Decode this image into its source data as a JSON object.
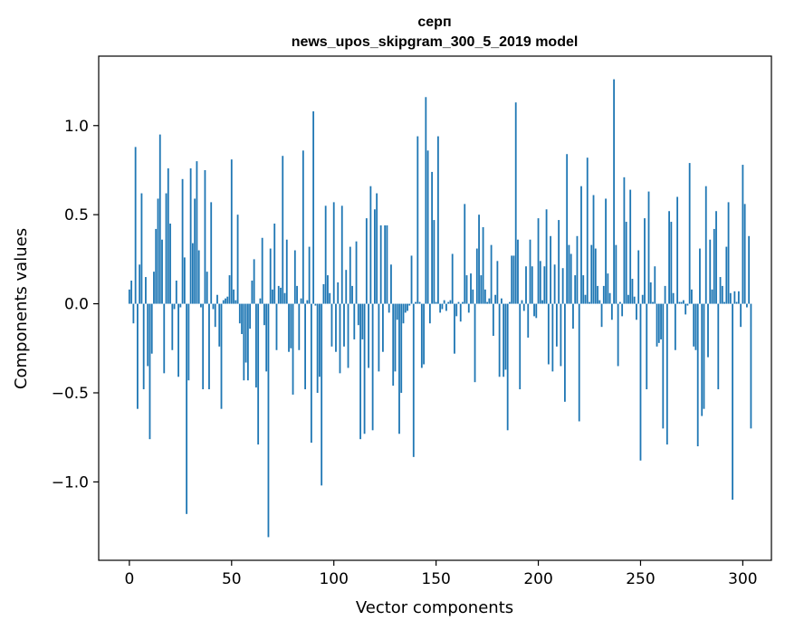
{
  "chart_data": {
    "type": "bar",
    "title": [
      "серп",
      "news_upos_skipgram_300_5_2019 model"
    ],
    "xlabel": "Vector components",
    "ylabel": "Components values",
    "xlim": [
      -15,
      314
    ],
    "ylim": [
      -1.44,
      1.39
    ],
    "xticks": [
      0,
      50,
      100,
      150,
      200,
      250,
      300
    ],
    "xtick_labels": [
      "0",
      "50",
      "100",
      "150",
      "200",
      "250",
      "300"
    ],
    "yticks": [
      -1.0,
      -0.5,
      0.0,
      0.5,
      1.0
    ],
    "ytick_labels": [
      "−1.0",
      "−0.5",
      "0.0",
      "0.5",
      "1.0"
    ],
    "grid": false,
    "bar_color": "#1f77b4",
    "x_start": 0,
    "values": [
      0.08,
      0.13,
      -0.11,
      0.88,
      -0.59,
      0.22,
      0.62,
      -0.48,
      0.15,
      -0.35,
      -0.76,
      -0.28,
      0.18,
      0.42,
      0.59,
      0.95,
      0.36,
      -0.39,
      0.62,
      0.76,
      0.45,
      -0.26,
      -0.03,
      0.13,
      -0.41,
      -0.02,
      0.7,
      0.26,
      -1.18,
      -0.43,
      0.76,
      0.34,
      0.59,
      0.8,
      0.3,
      -0.02,
      -0.48,
      0.75,
      0.18,
      -0.48,
      0.57,
      -0.03,
      -0.13,
      0.05,
      -0.24,
      -0.59,
      0.02,
      0.03,
      0.04,
      0.16,
      0.81,
      0.08,
      0.02,
      0.5,
      -0.11,
      -0.17,
      -0.43,
      -0.33,
      -0.43,
      -0.14,
      0.13,
      0.25,
      -0.47,
      -0.79,
      0.03,
      0.37,
      -0.12,
      -0.38,
      -1.31,
      0.31,
      0.08,
      0.45,
      -0.26,
      0.1,
      0.09,
      0.83,
      0.06,
      0.36,
      -0.27,
      -0.25,
      -0.51,
      0.3,
      0.1,
      -0.26,
      0.03,
      0.86,
      -0.48,
      0.02,
      0.32,
      -0.78,
      1.08,
      -0.01,
      -0.5,
      -0.41,
      -1.02,
      0.11,
      0.55,
      0.16,
      0.06,
      -0.24,
      0.57,
      -0.27,
      0.12,
      -0.39,
      0.55,
      -0.24,
      0.19,
      -0.36,
      0.32,
      0.1,
      -0.2,
      0.35,
      -0.12,
      -0.76,
      -0.2,
      -0.73,
      0.48,
      -0.36,
      0.66,
      -0.71,
      0.53,
      0.62,
      -0.38,
      0.44,
      -0.27,
      0.44,
      0.44,
      -0.05,
      0.22,
      -0.46,
      -0.38,
      -0.09,
      -0.73,
      -0.5,
      -0.11,
      -0.05,
      -0.04,
      -0.01,
      0.27,
      -0.86,
      0.01,
      0.94,
      0.01,
      -0.36,
      -0.34,
      1.16,
      0.86,
      -0.11,
      0.74,
      0.47,
      0.01,
      0.94,
      -0.05,
      -0.03,
      0.02,
      -0.04,
      0.01,
      0.02,
      0.28,
      -0.28,
      -0.07,
      0.01,
      -0.1,
      0.01,
      0.56,
      0.16,
      -0.05,
      0.17,
      0.08,
      -0.44,
      0.31,
      0.5,
      0.16,
      0.43,
      0.08,
      0.01,
      0.03,
      0.33,
      -0.18,
      0.05,
      0.24,
      -0.41,
      0.03,
      -0.41,
      -0.37,
      -0.71,
      0.01,
      0.27,
      0.27,
      1.13,
      0.36,
      -0.48,
      0.02,
      -0.04,
      0.21,
      -0.19,
      0.36,
      0.21,
      -0.07,
      -0.08,
      0.48,
      0.24,
      0.02,
      0.21,
      0.53,
      -0.34,
      0.38,
      -0.38,
      0.22,
      -0.24,
      0.47,
      -0.35,
      0.2,
      -0.55,
      0.84,
      0.33,
      0.28,
      -0.14,
      0.16,
      0.38,
      -0.66,
      0.66,
      0.16,
      0.05,
      0.82,
      0.01,
      0.33,
      0.61,
      0.31,
      0.1,
      0.02,
      -0.13,
      0.1,
      0.59,
      0.17,
      0.06,
      -0.09,
      1.26,
      0.33,
      -0.35,
      0.01,
      -0.07,
      0.71,
      0.46,
      0.05,
      0.64,
      0.14,
      0.04,
      -0.09,
      0.3,
      -0.88,
      0.05,
      0.48,
      -0.48,
      0.63,
      0.12,
      0.01,
      0.21,
      -0.24,
      -0.22,
      -0.2,
      -0.7,
      0.1,
      -0.79,
      0.52,
      0.46,
      0.06,
      -0.26,
      0.6,
      0.01,
      0.01,
      0.02,
      -0.06,
      -0.01,
      0.79,
      0.08,
      -0.24,
      -0.26,
      -0.8,
      0.31,
      -0.63,
      -0.59,
      0.66,
      -0.3,
      0.36,
      0.08,
      0.42,
      0.52,
      -0.48,
      0.15,
      0.1,
      0.01,
      0.32,
      0.57,
      0.06,
      -1.1,
      0.07,
      0.01,
      0.07,
      -0.13,
      0.78,
      0.56,
      -0.02,
      0.38,
      -0.7
    ]
  }
}
